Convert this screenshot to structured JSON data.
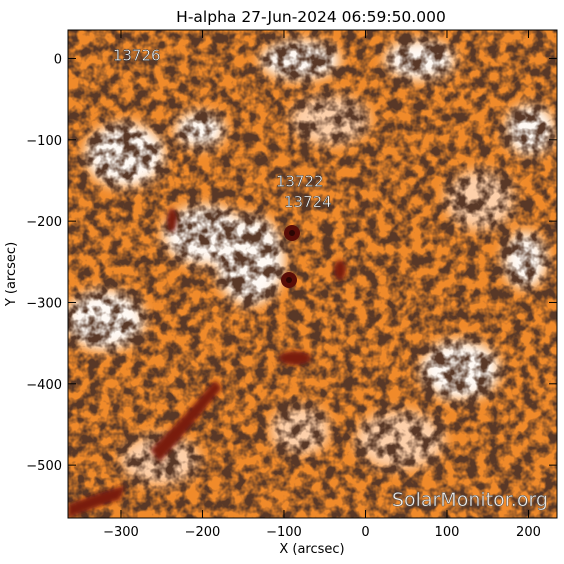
{
  "title": "H-alpha 27-Jun-2024 06:59:50.000",
  "x_axis": {
    "label": "X (arcsec)",
    "range": [
      -365,
      235
    ],
    "ticks": [
      -300,
      -200,
      -100,
      0,
      100,
      200
    ],
    "tick_labels": [
      "−300",
      "−200",
      "−100",
      "0",
      "100",
      "200"
    ]
  },
  "y_axis": {
    "label": "Y (arcsec)",
    "range": [
      -565,
      35
    ],
    "ticks": [
      0,
      -100,
      -200,
      -300,
      -400,
      -500
    ],
    "tick_labels": [
      "0",
      "−100",
      "−200",
      "−300",
      "−400",
      "−500"
    ]
  },
  "regions": [
    {
      "label": "13726",
      "x": -310,
      "y": 5
    },
    {
      "label": "13722",
      "x": -110,
      "y": -150
    },
    {
      "label": "13724",
      "x": -100,
      "y": -175
    }
  ],
  "watermark": "SolarMonitor.org",
  "colors": {
    "dark": "#1a0a05",
    "orange": "#ff7a1a",
    "light": "#ffd8b8",
    "white": "#ffffff",
    "sunspot": "#7a1a10"
  }
}
